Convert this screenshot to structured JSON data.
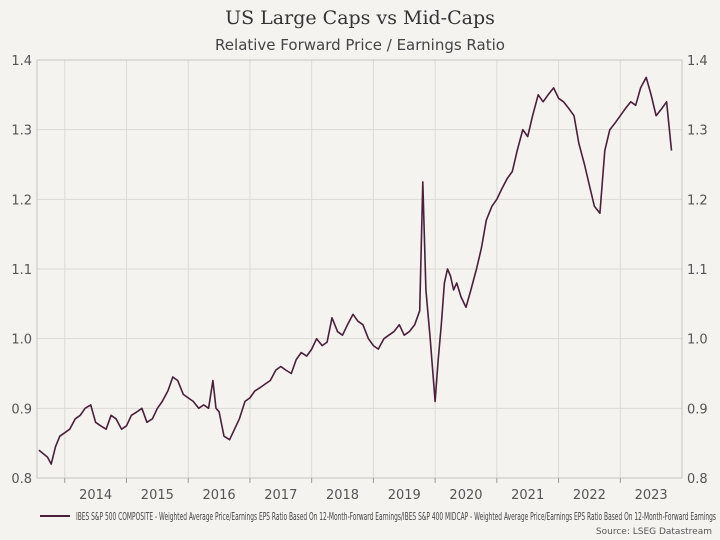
{
  "chart_data": {
    "type": "line",
    "title": "US Large Caps vs Mid-Caps",
    "subtitle": "Relative Forward Price / Earnings Ratio",
    "source": "Source: LSEG Datastream",
    "line_color": "#4a1f3b",
    "grid": true,
    "legend_position": "bottom-left",
    "x_ticks": [
      "2014",
      "2015",
      "2016",
      "2017",
      "2018",
      "2019",
      "2020",
      "2021",
      "2022",
      "2023"
    ],
    "xlim": [
      2013.55,
      2024.0
    ],
    "y_ticks": [
      "0.8",
      "0.9",
      "1.0",
      "1.1",
      "1.2",
      "1.3",
      "1.4"
    ],
    "ylim": [
      0.8,
      1.4
    ],
    "series": [
      {
        "name": "IBES S&P 500 COMPOSITE - Weighted Average Price/Earnings EPS Ratio Based On 12-Month-Forward Earnings/IBES S&P 400 MIDCAP - Weighted Average Price/Earnings EPS Ratio Based On 12-Month-Forward Earnings",
        "x": [
          2013.58,
          2013.65,
          2013.72,
          2013.78,
          2013.85,
          2013.92,
          2014.0,
          2014.08,
          2014.17,
          2014.25,
          2014.33,
          2014.42,
          2014.5,
          2014.58,
          2014.67,
          2014.75,
          2014.83,
          2014.92,
          2015.0,
          2015.08,
          2015.17,
          2015.25,
          2015.33,
          2015.42,
          2015.5,
          2015.58,
          2015.67,
          2015.75,
          2015.83,
          2015.92,
          2016.0,
          2016.08,
          2016.17,
          2016.25,
          2016.33,
          2016.4,
          2016.45,
          2016.5,
          2016.58,
          2016.67,
          2016.75,
          2016.83,
          2016.92,
          2017.0,
          2017.08,
          2017.17,
          2017.25,
          2017.33,
          2017.42,
          2017.5,
          2017.58,
          2017.67,
          2017.75,
          2017.83,
          2017.92,
          2018.0,
          2018.08,
          2018.17,
          2018.25,
          2018.33,
          2018.42,
          2018.5,
          2018.58,
          2018.67,
          2018.75,
          2018.83,
          2018.92,
          2019.0,
          2019.08,
          2019.17,
          2019.25,
          2019.33,
          2019.42,
          2019.5,
          2019.58,
          2019.67,
          2019.75,
          2019.8,
          2019.85,
          2019.92,
          2020.0,
          2020.05,
          2020.1,
          2020.15,
          2020.2,
          2020.25,
          2020.3,
          2020.35,
          2020.42,
          2020.5,
          2020.58,
          2020.67,
          2020.75,
          2020.83,
          2020.92,
          2021.0,
          2021.08,
          2021.17,
          2021.25,
          2021.33,
          2021.42,
          2021.5,
          2021.58,
          2021.67,
          2021.75,
          2021.83,
          2021.92,
          2022.0,
          2022.08,
          2022.17,
          2022.25,
          2022.33,
          2022.42,
          2022.5,
          2022.58,
          2022.67,
          2022.75,
          2022.83,
          2022.92,
          2023.0,
          2023.08,
          2023.17,
          2023.25,
          2023.33,
          2023.42,
          2023.5,
          2023.58,
          2023.67,
          2023.75,
          2023.83
        ],
        "values": [
          0.84,
          0.835,
          0.83,
          0.82,
          0.845,
          0.86,
          0.865,
          0.87,
          0.885,
          0.89,
          0.9,
          0.905,
          0.88,
          0.875,
          0.87,
          0.89,
          0.885,
          0.87,
          0.875,
          0.89,
          0.895,
          0.9,
          0.88,
          0.885,
          0.9,
          0.91,
          0.925,
          0.945,
          0.94,
          0.92,
          0.915,
          0.91,
          0.9,
          0.905,
          0.9,
          0.94,
          0.9,
          0.895,
          0.86,
          0.855,
          0.87,
          0.885,
          0.91,
          0.915,
          0.925,
          0.93,
          0.935,
          0.94,
          0.955,
          0.96,
          0.955,
          0.95,
          0.97,
          0.98,
          0.975,
          0.985,
          1.0,
          0.99,
          0.995,
          1.03,
          1.01,
          1.005,
          1.02,
          1.035,
          1.025,
          1.02,
          1.0,
          0.99,
          0.985,
          1.0,
          1.005,
          1.01,
          1.02,
          1.005,
          1.01,
          1.02,
          1.04,
          1.225,
          1.07,
          1.0,
          0.91,
          0.97,
          1.02,
          1.08,
          1.1,
          1.09,
          1.07,
          1.08,
          1.06,
          1.045,
          1.07,
          1.1,
          1.13,
          1.17,
          1.19,
          1.2,
          1.215,
          1.23,
          1.24,
          1.27,
          1.3,
          1.29,
          1.32,
          1.35,
          1.34,
          1.35,
          1.36,
          1.345,
          1.34,
          1.33,
          1.32,
          1.28,
          1.25,
          1.22,
          1.19,
          1.18,
          1.27,
          1.3,
          1.31,
          1.32,
          1.33,
          1.34,
          1.335,
          1.36,
          1.375,
          1.35,
          1.32,
          1.33,
          1.34,
          1.27
        ]
      }
    ]
  }
}
